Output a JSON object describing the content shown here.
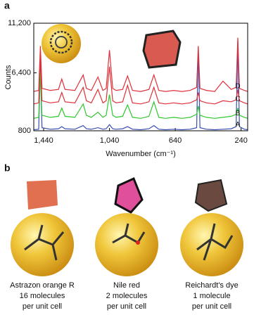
{
  "panel_labels": [
    "a",
    "b"
  ],
  "chart_data": {
    "type": "line",
    "y_label": "Counts",
    "x_label": "Wavenumber (cm⁻¹)",
    "xlim": [
      1500,
      200
    ],
    "ylim": [
      800,
      11200
    ],
    "xticks": [
      {
        "value": 1440,
        "label": "1,440"
      },
      {
        "value": 1040,
        "label": "1,040"
      },
      640,
      240
    ],
    "yticks": [
      800,
      {
        "value": 6400,
        "label": "6,400"
      },
      {
        "value": 11200,
        "label": "11,200"
      }
    ],
    "x": [
      1500,
      1470,
      1460,
      1450,
      1400,
      1350,
      1330,
      1310,
      1250,
      1200,
      1180,
      1150,
      1110,
      1080,
      1060,
      1040,
      1020,
      1000,
      960,
      930,
      900,
      850,
      800,
      770,
      740,
      700,
      650,
      600,
      550,
      510,
      500,
      490,
      450,
      400,
      350,
      300,
      270,
      260,
      250,
      220,
      200
    ],
    "series": [
      {
        "name": "A",
        "color": "#3a4fb0",
        "values": [
          900,
          950,
          7000,
          1100,
          950,
          1000,
          1200,
          1000,
          950,
          1300,
          1000,
          950,
          1100,
          950,
          1000,
          1400,
          1000,
          950,
          1000,
          1200,
          950,
          900,
          1000,
          1300,
          950,
          900,
          950,
          900,
          950,
          1100,
          8800,
          1100,
          950,
          900,
          950,
          1000,
          1200,
          9500,
          1200,
          950,
          900
        ]
      },
      {
        "name": "B",
        "color": "#2ec82e",
        "values": [
          2000,
          2100,
          6500,
          2300,
          2100,
          2200,
          3000,
          2200,
          2100,
          3400,
          2300,
          2100,
          2600,
          2100,
          2300,
          4300,
          2300,
          2100,
          2200,
          3300,
          2100,
          2000,
          2200,
          3600,
          2100,
          2000,
          2100,
          2000,
          2100,
          2400,
          3200,
          2300,
          2100,
          2000,
          2100,
          2200,
          2400,
          3000,
          2300,
          2100,
          2000
        ]
      },
      {
        "name": "C",
        "color": "#e0303a",
        "values": [
          3400,
          3500,
          8000,
          3700,
          3500,
          3600,
          4500,
          3600,
          3500,
          5000,
          3700,
          3500,
          4800,
          3500,
          3700,
          7000,
          3700,
          3500,
          3600,
          5200,
          3500,
          3400,
          3600,
          5000,
          3500,
          3400,
          3500,
          3400,
          3500,
          3800,
          4500,
          3700,
          3500,
          3400,
          3700,
          3600,
          3800,
          4800,
          3700,
          3500,
          3400
        ]
      },
      {
        "name": "D",
        "color": "#e0303a",
        "values": [
          4600,
          4700,
          9000,
          4900,
          4700,
          4800,
          5800,
          4800,
          4700,
          6200,
          4900,
          4700,
          6000,
          4700,
          4900,
          8600,
          4900,
          4700,
          4800,
          6100,
          4700,
          4600,
          4800,
          6200,
          4700,
          4600,
          4700,
          4600,
          4700,
          5000,
          9000,
          4900,
          4700,
          4600,
          5600,
          4800,
          5000,
          9800,
          4900,
          4700,
          4600
        ]
      }
    ]
  },
  "panel_b": {
    "items": [
      {
        "lines": [
          "Astrazon orange R",
          "16 molecules",
          "per unit cell"
        ]
      },
      {
        "lines": [
          "Nile red",
          "2 molecules",
          "per unit cell"
        ]
      },
      {
        "lines": [
          "Reichardt's dye",
          "1 molecule",
          "per unit cell"
        ]
      }
    ]
  }
}
